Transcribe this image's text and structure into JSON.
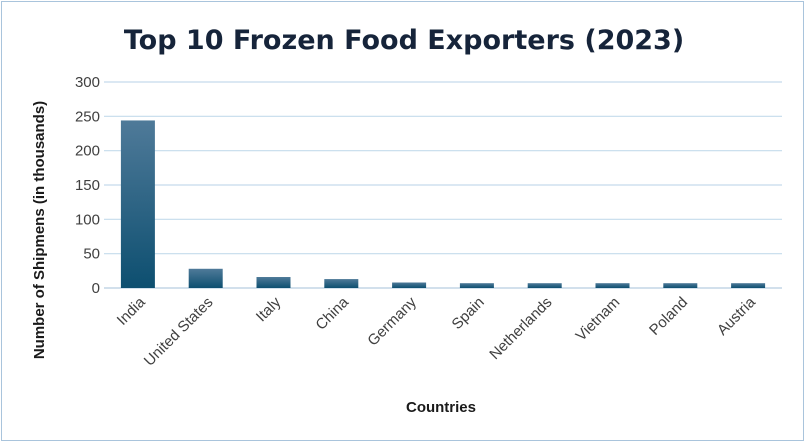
{
  "chart_data": {
    "type": "bar",
    "title": "Top 10 Frozen Food Exporters (2023)",
    "xlabel": "Countries",
    "ylabel": "Number of Shipmens (in thousands)",
    "categories": [
      "India",
      "United States",
      "Italy",
      "China",
      "Germany",
      "Spain",
      "Netherlands",
      "Vietnam",
      "Poland",
      "Austria"
    ],
    "values": [
      244,
      28,
      16,
      13,
      8,
      7,
      7,
      7,
      7,
      7
    ],
    "ylim": [
      0,
      300
    ],
    "yticks": [
      0,
      50,
      100,
      150,
      200,
      250,
      300
    ],
    "grid": true,
    "legend": "none",
    "colors": {
      "bar_top": "#4f7a99",
      "bar_bottom": "#0d4f70",
      "grid": "#c5dbec",
      "title": "#16243a"
    }
  }
}
